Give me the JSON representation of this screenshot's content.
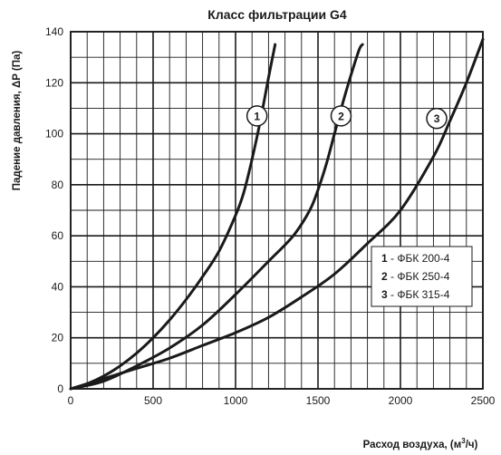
{
  "chart_data": {
    "type": "line",
    "title": "Класс  фильтрации G4",
    "xlabel": "Расход воздуха, (м³/ч)",
    "xlabel_parts": {
      "main": "Расход воздуха, (м",
      "sup": "3",
      "tail": "/ч)"
    },
    "ylabel": "Падение давления, ΔP (Па)",
    "xlim": [
      0,
      2500
    ],
    "ylim": [
      0,
      140
    ],
    "x_ticks": [
      0,
      500,
      1000,
      1500,
      2000,
      2500
    ],
    "y_ticks": [
      0,
      20,
      40,
      60,
      80,
      100,
      120,
      140
    ],
    "x_minor_step": 100,
    "y_minor_step": 10,
    "grid": true,
    "colors": {
      "curve": "#1a1a1a",
      "grid": "#1a1a1a",
      "background": "#ffffff"
    },
    "series": [
      {
        "name": "ФБК 200-4",
        "marker": "1",
        "marker_at": [
          1130,
          107
        ],
        "points": [
          [
            0,
            0
          ],
          [
            100,
            2
          ],
          [
            200,
            5
          ],
          [
            300,
            9
          ],
          [
            400,
            14
          ],
          [
            500,
            20
          ],
          [
            600,
            27
          ],
          [
            700,
            35
          ],
          [
            800,
            44
          ],
          [
            900,
            54
          ],
          [
            1000,
            68
          ],
          [
            1050,
            77
          ],
          [
            1100,
            90
          ],
          [
            1150,
            105
          ],
          [
            1200,
            122
          ],
          [
            1240,
            135
          ]
        ]
      },
      {
        "name": "ФБК 250-4",
        "marker": "2",
        "marker_at": [
          1640,
          107
        ],
        "points": [
          [
            0,
            0
          ],
          [
            200,
            3
          ],
          [
            400,
            9
          ],
          [
            600,
            16
          ],
          [
            800,
            25
          ],
          [
            1000,
            37
          ],
          [
            1200,
            50
          ],
          [
            1350,
            60
          ],
          [
            1450,
            70
          ],
          [
            1500,
            78
          ],
          [
            1550,
            88
          ],
          [
            1600,
            100
          ],
          [
            1650,
            112
          ],
          [
            1700,
            123
          ],
          [
            1750,
            133
          ],
          [
            1770,
            135
          ]
        ]
      },
      {
        "name": "ФБК 315-4",
        "marker": "3",
        "marker_at": [
          2220,
          106
        ],
        "points": [
          [
            0,
            0
          ],
          [
            200,
            4
          ],
          [
            400,
            8
          ],
          [
            600,
            12
          ],
          [
            800,
            17
          ],
          [
            1000,
            22
          ],
          [
            1200,
            28
          ],
          [
            1400,
            36
          ],
          [
            1600,
            45
          ],
          [
            1800,
            57
          ],
          [
            2000,
            70
          ],
          [
            2200,
            91
          ],
          [
            2300,
            105
          ],
          [
            2400,
            120
          ],
          [
            2500,
            137
          ]
        ]
      }
    ],
    "legend": {
      "position": "right-middle",
      "entries": [
        {
          "num": "1",
          "sep": " - ",
          "label": "ФБК 200-4"
        },
        {
          "num": "2",
          "sep": " - ",
          "label": "ФБК 250-4"
        },
        {
          "num": "3",
          "sep": " - ",
          "label": "ФБК 315-4"
        }
      ]
    }
  }
}
